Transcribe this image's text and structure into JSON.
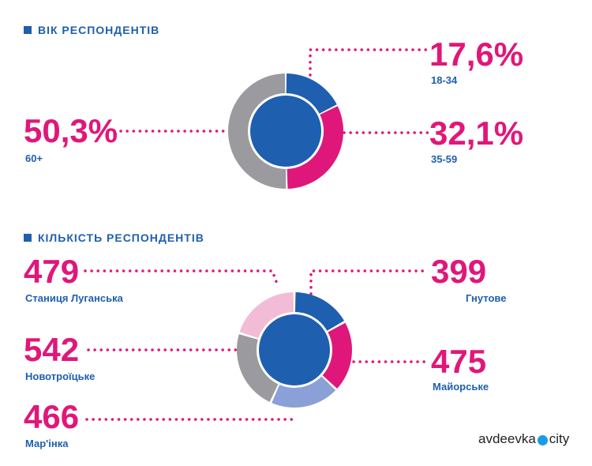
{
  "brand": {
    "left": "avdeevka",
    "right": "city",
    "globe_color": "#1e9be6"
  },
  "colors": {
    "pink": "#e0177a",
    "blue": "#1f5fae",
    "center": "#1e5fb0"
  },
  "chart_data": [
    {
      "type": "pie",
      "title": "ВІК РЕСПОНДЕНТІВ",
      "series": [
        {
          "name": "18-34",
          "label": "17,6%",
          "value": 17.6,
          "color": "#1e5fb0"
        },
        {
          "name": "35-59",
          "label": "32,1%",
          "value": 32.1,
          "color": "#e0177a"
        },
        {
          "name": "60+",
          "label": "50,3%",
          "value": 50.3,
          "color": "#9b9b9f"
        }
      ]
    },
    {
      "type": "pie",
      "title": "КІЛЬКІСТЬ РЕСПОНДЕНТІВ",
      "series": [
        {
          "name": "Гнутове",
          "label": "399",
          "value": 399,
          "color": "#1e5fb0"
        },
        {
          "name": "Майорське",
          "label": "475",
          "value": 475,
          "color": "#e0177a"
        },
        {
          "name": "Мар'інка",
          "label": "466",
          "value": 466,
          "color": "#8aa0d6"
        },
        {
          "name": "Новотроїцьке",
          "label": "542",
          "value": 542,
          "color": "#9b9b9f"
        },
        {
          "name": "Станиця Луганська",
          "label": "479",
          "value": 479,
          "color": "#f2bcd6"
        }
      ]
    }
  ]
}
